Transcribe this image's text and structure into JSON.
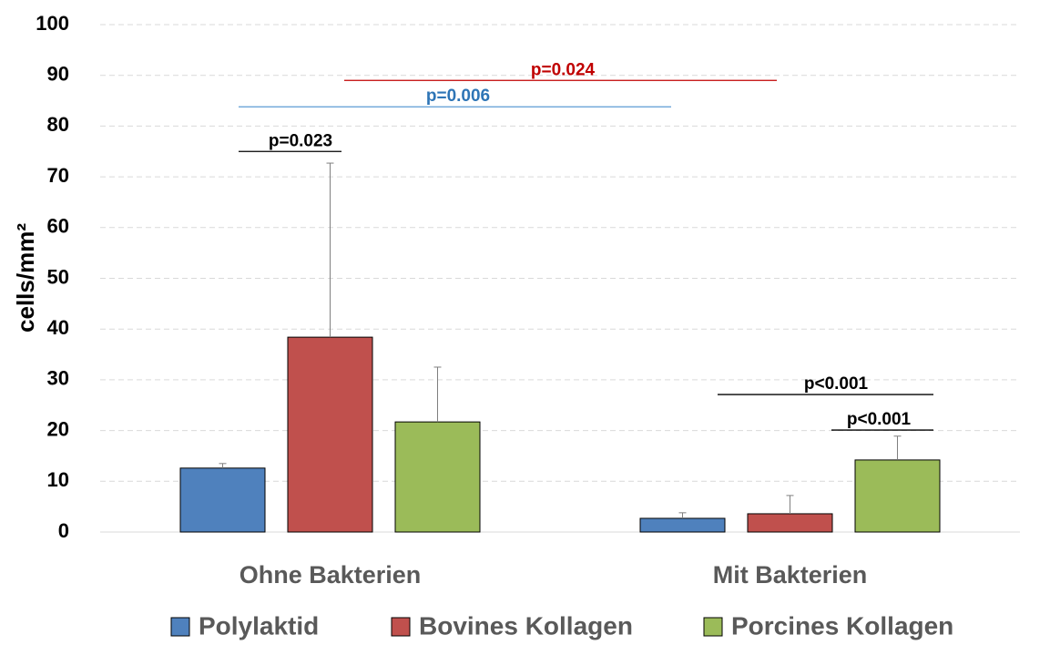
{
  "chart_data": {
    "type": "bar",
    "y_label": "cells/mm²",
    "categories": [
      "Ohne Bakterien",
      "Mit Bakterien"
    ],
    "series": [
      {
        "name": "Polylaktid",
        "color": "#4f81bd",
        "values": [
          12.6,
          2.7
        ],
        "errors": [
          0.9,
          1.1
        ]
      },
      {
        "name": "Bovines Kollagen",
        "color": "#c0504d",
        "values": [
          38.4,
          3.6
        ],
        "errors": [
          34.3,
          3.6
        ]
      },
      {
        "name": "Porcines Kollagen",
        "color": "#9bbb59",
        "values": [
          21.7,
          14.2
        ],
        "errors": [
          10.8,
          4.7
        ]
      }
    ],
    "ylim": [
      0,
      100
    ],
    "yticks": [
      0,
      10,
      20,
      30,
      40,
      50,
      60,
      70,
      80,
      90,
      100
    ],
    "grid": true,
    "annotations": [
      {
        "text": "p=0.023",
        "y": 75,
        "color": "#000000"
      },
      {
        "text": "p=0.006",
        "y": 83.8,
        "color": "#2e75b6"
      },
      {
        "text": "p=0.024",
        "y": 89,
        "color": "#c00000"
      },
      {
        "text": "p<0.001",
        "y": 27.1,
        "color": "#000000"
      },
      {
        "text": "p<0.001",
        "y": 20.1,
        "color": "#000000"
      }
    ],
    "legend": "bottom"
  }
}
